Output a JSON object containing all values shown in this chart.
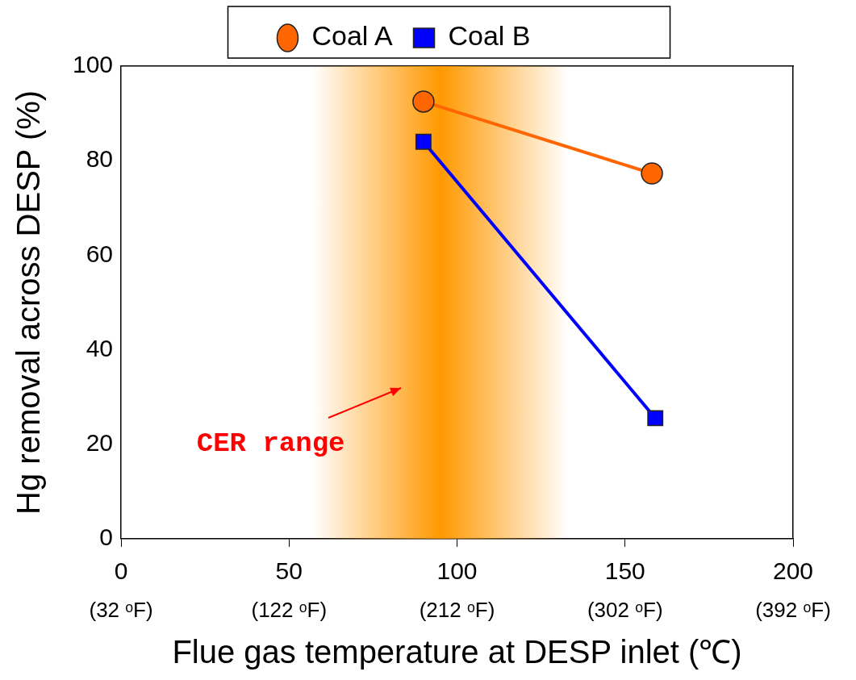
{
  "chart_data": {
    "type": "line",
    "xlabel": "Flue gas temperature at DESP inlet (℃)",
    "ylabel": "Hg removal across DESP (%)",
    "series": [
      {
        "name": "Coal A",
        "color": "#ff6600",
        "marker": "circle",
        "x": [
          90,
          158
        ],
        "values": [
          92.5,
          77.3
        ]
      },
      {
        "name": "Coal B",
        "color": "#0000ff",
        "marker": "square",
        "x": [
          90,
          159
        ],
        "values": [
          84,
          25.5
        ]
      }
    ],
    "xlim": [
      0,
      200
    ],
    "xticks": [
      0,
      50,
      100,
      150,
      200
    ],
    "x2lim": [
      32,
      392
    ],
    "x2ticks": [
      {
        "value": 32,
        "label": "(32 ᵒF)"
      },
      {
        "value": 122,
        "label": "(122 ᵒF)"
      },
      {
        "value": 212,
        "label": "(212 ᵒF)"
      },
      {
        "value": 302,
        "label": "(302 ᵒF)"
      },
      {
        "value": 392,
        "label": "(392 ᵒF)"
      }
    ],
    "ylim": [
      0,
      100
    ],
    "yticks": [
      0,
      20,
      40,
      60,
      80,
      100
    ],
    "bands": [
      {
        "axis": "x",
        "from": 57,
        "to": 133,
        "label": "CER range",
        "color": "#ff9900"
      }
    ],
    "grid": false,
    "legend": "top"
  }
}
